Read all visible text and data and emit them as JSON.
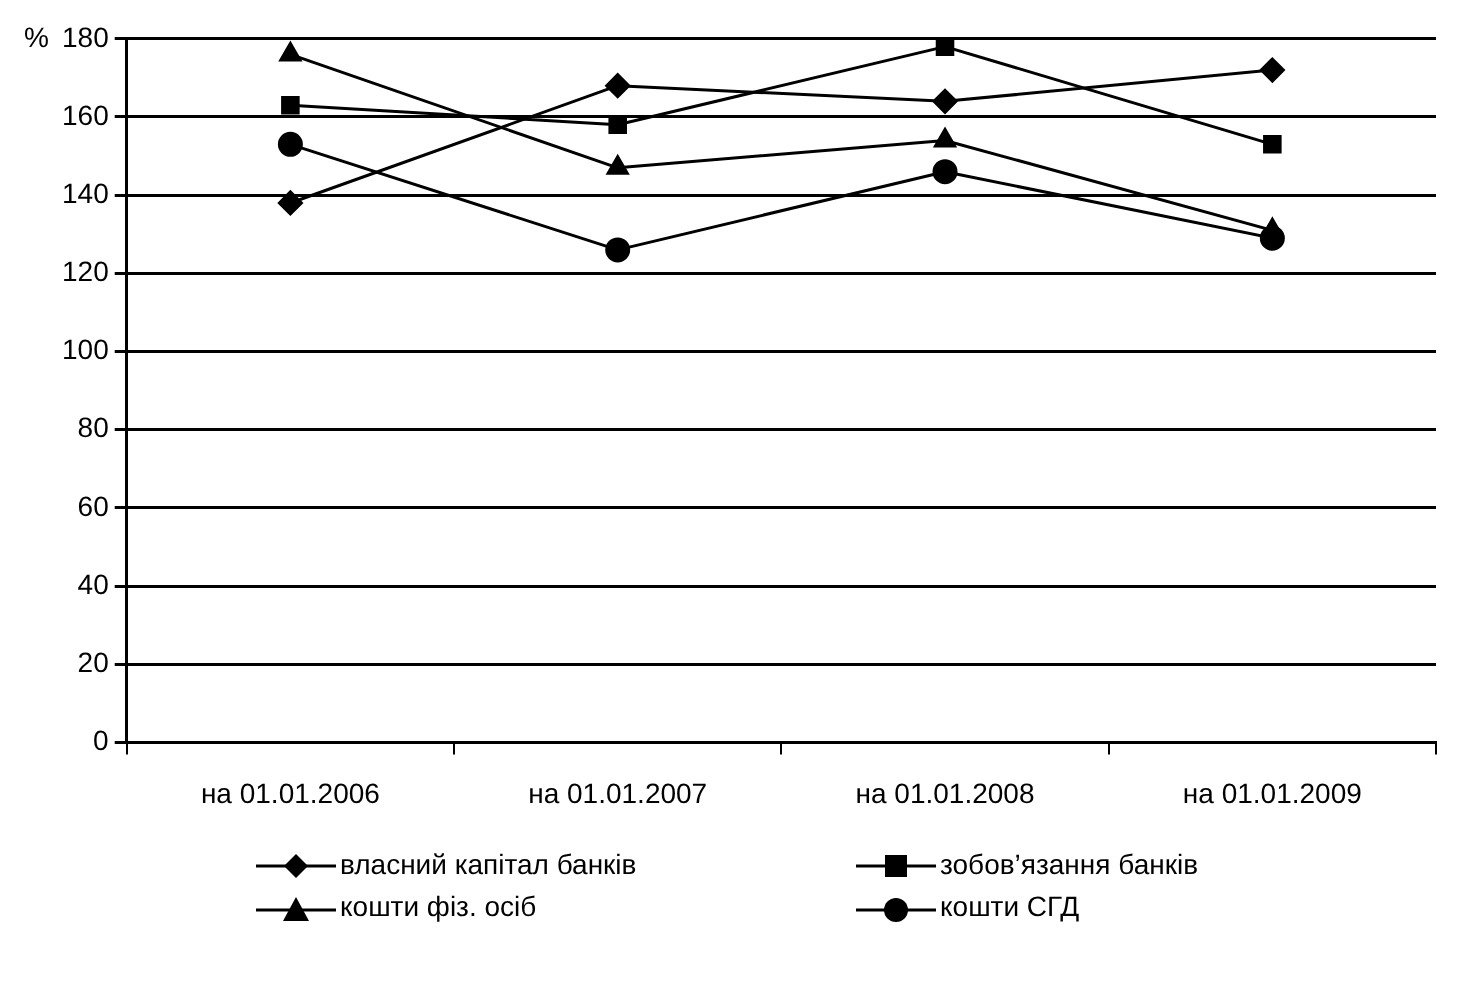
{
  "chart_data": {
    "type": "line",
    "ylabel": "%",
    "categories": [
      "на 01.01.2006",
      "на 01.01.2007",
      "на 01.01.2008",
      "на 01.01.2009"
    ],
    "series": [
      {
        "name": "власний капітал банків",
        "color": "#000000",
        "marker": "diamond",
        "values": [
          138,
          168,
          164,
          172
        ]
      },
      {
        "name": "зобов’язання банків",
        "color": "#000000",
        "marker": "square",
        "values": [
          163,
          158,
          178,
          153
        ]
      },
      {
        "name": "кошти фіз. осіб",
        "color": "#000000",
        "marker": "triangle",
        "values": [
          176,
          147,
          154,
          131
        ]
      },
      {
        "name": "кошти СГД",
        "color": "#000000",
        "marker": "circle",
        "values": [
          153,
          126,
          146,
          129
        ]
      }
    ],
    "ylim": [
      0,
      180
    ],
    "yticks": [
      0,
      20,
      40,
      60,
      80,
      100,
      120,
      140,
      160,
      180
    ],
    "grid": "y",
    "legend": "bottom",
    "line_style": "solid"
  }
}
